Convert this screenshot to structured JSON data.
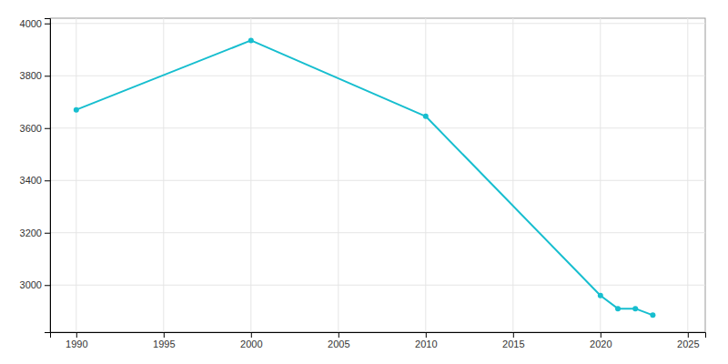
{
  "chart_data": {
    "type": "line",
    "x": [
      1990,
      2000,
      2010,
      2020,
      2021,
      2022,
      2023
    ],
    "values": [
      3670,
      3935,
      3645,
      2960,
      2910,
      2910,
      2885
    ],
    "color": "#17becf",
    "marker": "circle",
    "xlim": [
      1988.5,
      2026
    ],
    "ylim": [
      2820,
      4020
    ],
    "xticks": [
      1990,
      1995,
      2000,
      2005,
      2010,
      2015,
      2020,
      2025
    ],
    "yticks": [
      3000,
      3200,
      3400,
      3600,
      3800,
      4000
    ],
    "grid": true
  }
}
